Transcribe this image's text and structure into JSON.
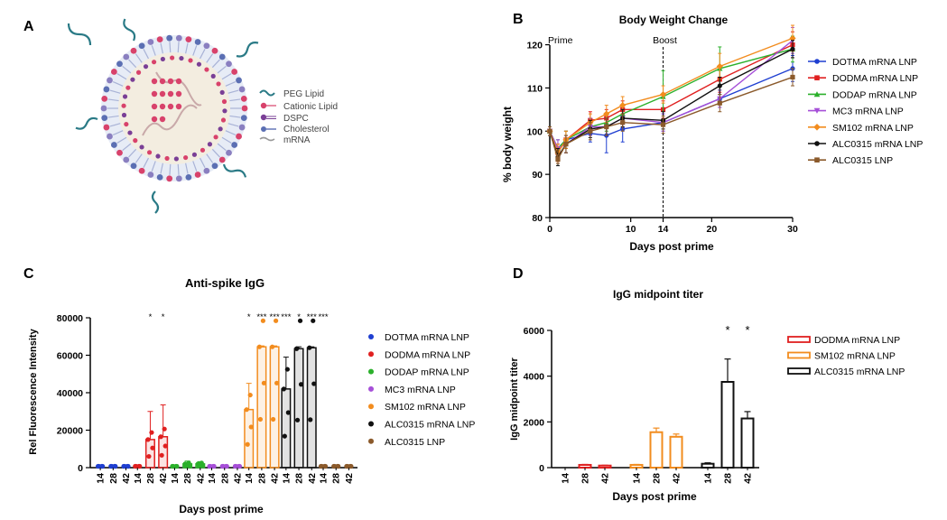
{
  "panel_letters": [
    "A",
    "B",
    "C",
    "D"
  ],
  "colors": {
    "blue": "#1f3fd1",
    "red": "#e02020",
    "green": "#2bb02b",
    "purple": "#a64fd8",
    "orange": "#f28c1e",
    "black": "#111111",
    "brown": "#8b5a2b",
    "lnp_blue": "#5b6fb3",
    "lnp_pink": "#d8426b",
    "lnp_teal": "#2a7a86",
    "lnp_purple": "#7a3f96",
    "lnp_core": "#f3ede0"
  },
  "lnp_legend": [
    "PEG Lipid",
    "Cationic Lipid",
    "DSPC",
    "Cholesterol",
    "mRNA"
  ],
  "chart_data": [
    {
      "id": "B",
      "type": "line",
      "title": "Body Weight Change",
      "xlabel": "Days post prime",
      "ylabel": "% body weight",
      "xlim": [
        0,
        30
      ],
      "ylim": [
        80,
        122
      ],
      "xticks": [
        0,
        10,
        14,
        20,
        30
      ],
      "xtick_labels": [
        "0",
        "10",
        "14",
        "20",
        "30"
      ],
      "yticks": [
        80,
        90,
        100,
        110,
        120
      ],
      "ytick_labels": [
        "80",
        "90",
        "100",
        "110",
        "120"
      ],
      "annotations": [
        {
          "text": "Prime",
          "x": 0
        },
        {
          "text": "Boost",
          "x": 14
        }
      ],
      "x": [
        0,
        1,
        2,
        5,
        7,
        9,
        14,
        21,
        30
      ],
      "series": [
        {
          "name": "DOTMA mRNA LNP",
          "color": "blue",
          "marker": "circle",
          "values": [
            100,
            96,
            98,
            99.5,
            99,
            100.5,
            102,
            107.5,
            114.5
          ],
          "err": [
            1,
            2,
            2,
            2,
            4,
            3,
            2,
            2,
            3
          ]
        },
        {
          "name": "DODMA mRNA LNP",
          "color": "red",
          "marker": "square",
          "values": [
            100,
            95,
            98,
            102.5,
            103,
            105,
            105,
            112,
            120
          ],
          "err": [
            1,
            2,
            2,
            2,
            2,
            2,
            2,
            3,
            3
          ]
        },
        {
          "name": "DODAP mRNA LNP",
          "color": "green",
          "marker": "triangle",
          "values": [
            100,
            96,
            98,
            101,
            102,
            104,
            108,
            114.5,
            119
          ],
          "err": [
            1,
            2,
            2,
            2,
            2,
            2,
            6,
            5,
            3
          ]
        },
        {
          "name": "MC3 mRNA LNP",
          "color": "purple",
          "marker": "triangle-down",
          "values": [
            100,
            96,
            97,
            101,
            101,
            103,
            102,
            107.5,
            121
          ],
          "err": [
            1,
            2,
            2,
            2,
            2,
            2,
            2,
            2,
            3
          ]
        },
        {
          "name": "SM102 mRNA LNP",
          "color": "orange",
          "marker": "diamond",
          "values": [
            100,
            95,
            98,
            102,
            104,
            106,
            108.5,
            115,
            121.5
          ],
          "err": [
            1,
            2,
            2,
            2,
            2,
            2,
            2,
            3,
            3
          ]
        },
        {
          "name": "ALC0315 mRNA LNP",
          "color": "black",
          "marker": "circle",
          "values": [
            100,
            94,
            97,
            100.5,
            101,
            103,
            102.5,
            110.5,
            119
          ],
          "err": [
            1,
            2,
            2,
            2,
            2,
            2,
            2,
            2,
            2
          ]
        },
        {
          "name": "ALC0315 LNP",
          "color": "brown",
          "marker": "square",
          "values": [
            100,
            93.5,
            97,
            100,
            101,
            102,
            101.5,
            106.5,
            112.5
          ],
          "err": [
            1,
            1,
            2,
            2,
            2,
            2,
            2,
            2,
            2
          ]
        }
      ]
    },
    {
      "id": "C",
      "type": "bar",
      "title": "Anti-spike IgG",
      "xlabel": "Days post prime",
      "ylabel": "Rel Fluorescence Intensity",
      "ylim": [
        0,
        80000
      ],
      "yticks": [
        0,
        20000,
        40000,
        60000,
        80000
      ],
      "ytick_labels": [
        "0",
        "20000",
        "40000",
        "60000",
        "80000"
      ],
      "day_labels": [
        "14",
        "28",
        "42"
      ],
      "significance": [
        "",
        "",
        "",
        "",
        "*",
        "*",
        "",
        "",
        "",
        "",
        "",
        "",
        "*",
        "***",
        "***",
        "***",
        "*",
        "***",
        "***",
        "",
        "",
        ""
      ],
      "sig_labels": [
        "* ",
        "*",
        "* *** *** *** *",
        " *** ***"
      ],
      "groups": [
        {
          "name": "DOTMA mRNA LNP",
          "color": "blue",
          "values": [
            0,
            0,
            0
          ],
          "err": [
            0,
            0,
            0
          ]
        },
        {
          "name": "DODMA mRNA LNP",
          "color": "red",
          "values": [
            0,
            15000,
            16500
          ],
          "err": [
            0,
            15000,
            17000
          ]
        },
        {
          "name": "DODAP mRNA LNP",
          "color": "green",
          "values": [
            0,
            2000,
            2000
          ],
          "err": [
            0,
            1500,
            1200
          ]
        },
        {
          "name": "MC3 mRNA LNP",
          "color": "purple",
          "values": [
            0,
            0,
            0
          ],
          "err": [
            0,
            0,
            0
          ]
        },
        {
          "name": "SM102 mRNA LNP",
          "color": "orange",
          "values": [
            31000,
            64500,
            64500
          ],
          "err": [
            14000,
            500,
            500
          ]
        },
        {
          "name": "ALC0315 mRNA LNP",
          "color": "black",
          "values": [
            42000,
            63500,
            64000
          ],
          "err": [
            17000,
            1000,
            500
          ]
        },
        {
          "name": "ALC0315 LNP",
          "color": "brown",
          "values": [
            0,
            0,
            0
          ],
          "err": [
            0,
            0,
            0
          ]
        }
      ]
    },
    {
      "id": "D",
      "type": "bar",
      "title": "IgG midpoint titer",
      "xlabel": "Days post prime",
      "ylabel": "IgG midpoint titer",
      "ylim": [
        0,
        6000
      ],
      "yticks": [
        0,
        2000,
        4000,
        6000
      ],
      "ytick_labels": [
        "0",
        "2000",
        "4000",
        "6000"
      ],
      "day_labels": [
        "14",
        "28",
        "42"
      ],
      "significance_labels": [
        "*",
        "*"
      ],
      "groups": [
        {
          "name": "DODMA mRNA LNP",
          "color": "red",
          "values": [
            0,
            120,
            90
          ],
          "err": [
            0,
            20,
            15
          ]
        },
        {
          "name": "SM102 mRNA LNP",
          "color": "orange",
          "values": [
            120,
            1550,
            1350
          ],
          "err": [
            20,
            180,
            120
          ]
        },
        {
          "name": "ALC0315 mRNA LNP",
          "color": "black",
          "values": [
            170,
            3750,
            2150
          ],
          "err": [
            40,
            1000,
            300
          ]
        }
      ]
    }
  ]
}
